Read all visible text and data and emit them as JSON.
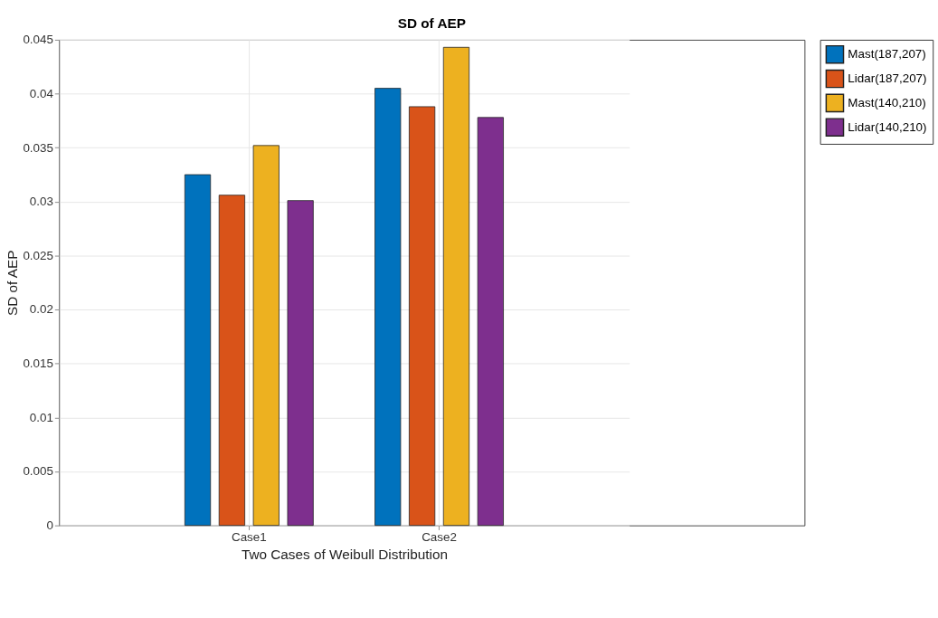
{
  "chart_data": {
    "type": "bar",
    "title": "SD of AEP",
    "xlabel": "Two Cases of Weibull Distribution",
    "ylabel": "SD of AEP",
    "categories": [
      "Case1",
      "Case2"
    ],
    "series": [
      {
        "name": "Mast(187,207)",
        "color": "#0072bd",
        "values": [
          0.0325,
          0.0405
        ]
      },
      {
        "name": "Lidar(187,207)",
        "color": "#d95319",
        "values": [
          0.0306,
          0.0388
        ]
      },
      {
        "name": "Mast(140,210)",
        "color": "#edb120",
        "values": [
          0.0352,
          0.0443
        ]
      },
      {
        "name": "Lidar(140,210)",
        "color": "#7e2f8e",
        "values": [
          0.0301,
          0.0378
        ]
      }
    ],
    "ylim": [
      0,
      0.045
    ],
    "yticks": [
      0,
      0.005,
      0.01,
      0.015,
      0.02,
      0.025,
      0.03,
      0.035,
      0.04,
      0.045
    ],
    "grid": true,
    "legend": "right"
  }
}
